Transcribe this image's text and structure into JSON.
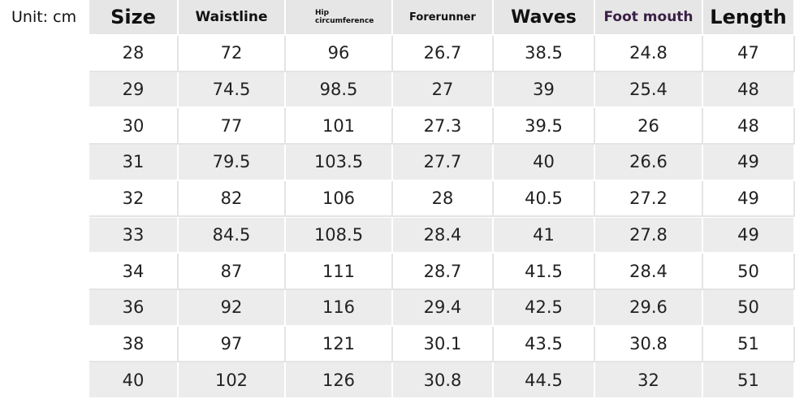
{
  "unit": "Unit: cm",
  "table": {
    "headers": [
      "Size",
      "Waistline",
      "Hip circumference",
      "Forerunner",
      "Waves",
      "Foot mouth",
      "Length"
    ],
    "rows": [
      [
        28,
        72,
        96,
        26.7,
        38.5,
        24.8,
        47
      ],
      [
        29,
        74.5,
        98.5,
        27,
        39,
        25.4,
        48
      ],
      [
        30,
        77,
        101,
        27.3,
        39.5,
        26,
        48
      ],
      [
        31,
        79.5,
        103.5,
        27.7,
        40,
        26.6,
        49
      ],
      [
        32,
        82,
        106,
        28,
        40.5,
        27.2,
        49
      ],
      [
        33,
        84.5,
        108.5,
        28.4,
        41,
        27.8,
        49
      ],
      [
        34,
        87,
        111,
        28.7,
        41.5,
        28.4,
        50
      ],
      [
        36,
        92,
        116,
        29.4,
        42.5,
        29.6,
        50
      ],
      [
        38,
        97,
        121,
        30.1,
        43.5,
        30.8,
        51
      ],
      [
        40,
        102,
        126,
        30.8,
        44.5,
        32,
        51
      ]
    ]
  }
}
